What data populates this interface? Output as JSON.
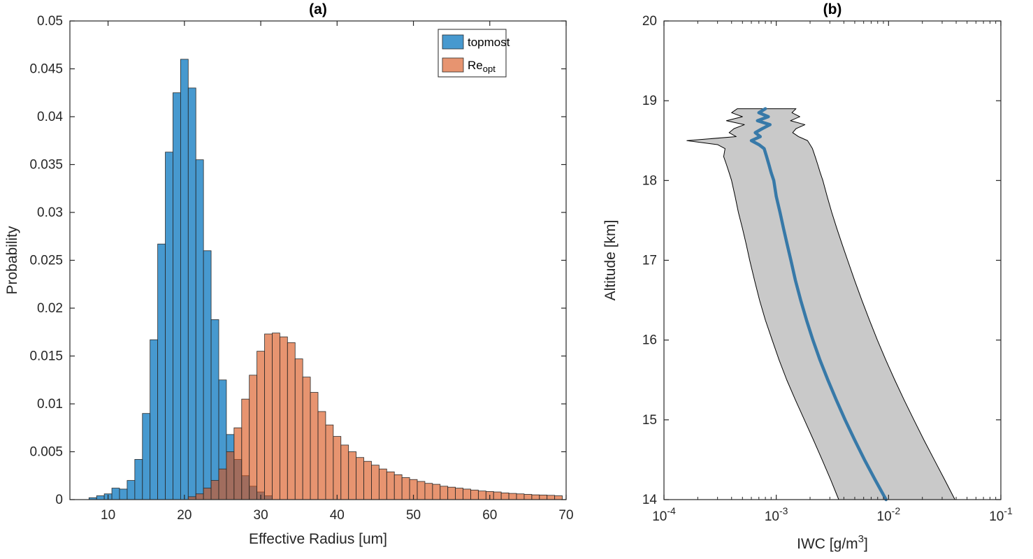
{
  "figure": {
    "background": "#ffffff",
    "panel_a_title": "(a)",
    "panel_b_title": "(b)"
  },
  "chart_data": [
    {
      "type": "bar",
      "subtype": "histogram",
      "panel": "a",
      "title": "(a)",
      "xlabel": "Effective Radius [um]",
      "ylabel": "Probability",
      "xlim": [
        5,
        70
      ],
      "ylim": [
        0,
        0.05
      ],
      "grid": false,
      "xticks": [
        10,
        20,
        30,
        40,
        50,
        60,
        70
      ],
      "xtick_labels": [
        "10",
        "20",
        "30",
        "40",
        "50",
        "60",
        "70"
      ],
      "yticks": [
        0,
        0.005,
        0.01,
        0.015,
        0.02,
        0.025,
        0.03,
        0.035,
        0.04,
        0.045,
        0.05
      ],
      "ytick_labels": [
        "0",
        "0.005",
        "0.01",
        "0.015",
        "0.02",
        "0.025",
        "0.03",
        "0.035",
        "0.04",
        "0.045",
        "0.05"
      ],
      "bin_width": 1,
      "axis_color": "#262626",
      "series": [
        {
          "name": "topmost",
          "color": "rgba(0,114,189,0.72)",
          "edge": "#2a2a2a",
          "bin_start": 7.5,
          "values": [
            0.0002,
            0.0004,
            0.0006,
            0.0012,
            0.0011,
            0.002,
            0.0042,
            0.009,
            0.0167,
            0.0267,
            0.0363,
            0.0425,
            0.046,
            0.043,
            0.0355,
            0.026,
            0.0188,
            0.0125,
            0.0068,
            0.0042,
            0.0025,
            0.0014,
            0.0008,
            0.0004
          ]
        },
        {
          "name": "Re_opt",
          "color": "rgba(217,83,25,0.62)",
          "edge": "#2a2a2a",
          "bin_start": 20.5,
          "values": [
            0.0003,
            0.0006,
            0.0012,
            0.002,
            0.0032,
            0.005,
            0.0075,
            0.0105,
            0.013,
            0.0155,
            0.0173,
            0.0174,
            0.017,
            0.0164,
            0.0147,
            0.0128,
            0.0112,
            0.0092,
            0.0078,
            0.0066,
            0.0057,
            0.005,
            0.0044,
            0.004,
            0.0036,
            0.0032,
            0.0029,
            0.0026,
            0.0023,
            0.0021,
            0.0019,
            0.0017,
            0.0016,
            0.0014,
            0.0013,
            0.0012,
            0.0011,
            0.001,
            0.0009,
            0.00085,
            0.0008,
            0.0007,
            0.00065,
            0.0006,
            0.00055,
            0.0005,
            0.00048,
            0.00045,
            0.0004
          ]
        }
      ],
      "legend": {
        "position": "top-right",
        "entries": [
          {
            "label": "topmost",
            "sub": ""
          },
          {
            "label": "Re",
            "sub": "opt"
          }
        ]
      }
    },
    {
      "type": "line",
      "subtype": "profile-with-envelope",
      "panel": "b",
      "title": "(b)",
      "xlabel_pre": "IWC [g/m",
      "xlabel_sup": "3",
      "xlabel_post": "]",
      "ylabel": "Altitude [km]",
      "xscale": "log",
      "xlim_exp": [
        -4,
        -1
      ],
      "xtick_exponents": [
        -4,
        -3,
        -2,
        -1
      ],
      "ylim": [
        14,
        20
      ],
      "yticks": [
        14,
        15,
        16,
        17,
        18,
        19,
        20
      ],
      "ytick_labels": [
        "14",
        "15",
        "16",
        "17",
        "18",
        "19",
        "20"
      ],
      "axis_color": "#262626",
      "band_color": "#c9c9c9",
      "band_edge": "#000000",
      "line_color": "#3779a8",
      "altitude": [
        18.9,
        18.85,
        18.8,
        18.75,
        18.7,
        18.65,
        18.6,
        18.55,
        18.5,
        18.45,
        18.4,
        18.3,
        18.2,
        18.1,
        18.0,
        17.8,
        17.6,
        17.4,
        17.2,
        17.0,
        16.75,
        16.5,
        16.25,
        16.0,
        15.75,
        15.5,
        15.25,
        15.0,
        14.75,
        14.5,
        14.25,
        14.0
      ],
      "median": [
        0.0008,
        0.0007,
        0.00085,
        0.00068,
        0.00088,
        0.00075,
        0.00065,
        0.00072,
        0.0006,
        0.0007,
        0.00078,
        0.00082,
        0.00086,
        0.0009,
        0.00095,
        0.001,
        0.00108,
        0.00116,
        0.00125,
        0.00135,
        0.00148,
        0.00165,
        0.00186,
        0.00212,
        0.00245,
        0.00288,
        0.00342,
        0.0041,
        0.00498,
        0.0061,
        0.00758,
        0.0095
      ],
      "band_low": [
        0.00045,
        0.0004,
        0.0005,
        0.00036,
        0.00052,
        0.00042,
        0.00038,
        0.00044,
        0.00016,
        0.0003,
        0.00035,
        0.00034,
        0.00036,
        0.00038,
        0.0004,
        0.00043,
        0.00046,
        0.0005,
        0.00054,
        0.00058,
        0.00064,
        0.00071,
        0.0008,
        0.00092,
        0.00106,
        0.00124,
        0.00148,
        0.00178,
        0.00214,
        0.00256,
        0.00305,
        0.0036
      ],
      "band_high": [
        0.0015,
        0.00138,
        0.00162,
        0.00134,
        0.0018,
        0.0015,
        0.0014,
        0.00158,
        0.0019,
        0.002,
        0.0021,
        0.00222,
        0.00234,
        0.00246,
        0.0026,
        0.00284,
        0.00312,
        0.00346,
        0.00386,
        0.00432,
        0.00498,
        0.00578,
        0.00676,
        0.00795,
        0.00945,
        0.01135,
        0.01375,
        0.0168,
        0.0206,
        0.0255,
        0.0316,
        0.039
      ]
    }
  ]
}
